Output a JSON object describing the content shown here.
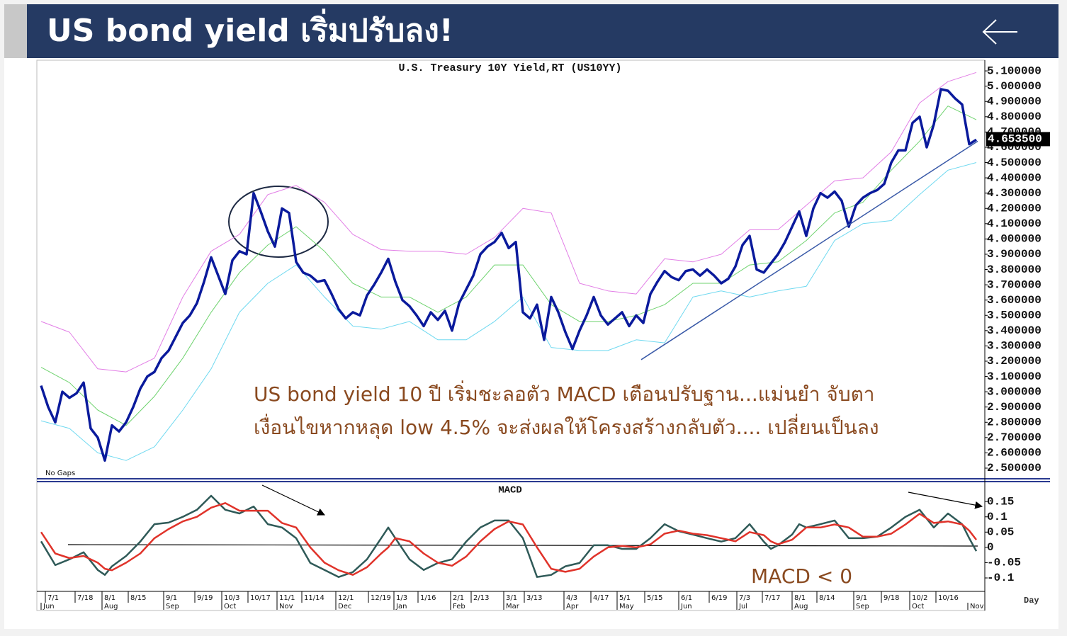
{
  "header": {
    "title": "US bond yield เริ่มปรับลง!"
  },
  "chart_data": [
    {
      "type": "line",
      "title": "U.S. Treasury 10Y Yield,RT (US10YY)",
      "annotations": [
        "No Gaps",
        "US bond yield 10 ปี เริ่มชะลอตัว MACD เตือนปรับฐาน...แม่นยำ จับตา",
        "เงื่อนไขหากหลุด low 4.5% จะส่งผลให้โครงสร้างกลับตัว.... เปลี่ยนเป็นลง"
      ],
      "xlim": [
        -0.6,
        133.2
      ],
      "ylim": [
        2.435,
        5.17
      ],
      "yticks": [
        {
          "value": 5.1,
          "label": "5.100000"
        },
        {
          "value": 5.0,
          "label": "5.000000"
        },
        {
          "value": 4.9,
          "label": "4.900000"
        },
        {
          "value": 4.8,
          "label": "4.800000"
        },
        {
          "value": 4.7,
          "label": "4.700000"
        },
        {
          "value": 4.6,
          "label": "4.600000"
        },
        {
          "value": 4.5,
          "label": "4.500000"
        },
        {
          "value": 4.4,
          "label": "4.400000"
        },
        {
          "value": 4.3,
          "label": "4.300000"
        },
        {
          "value": 4.2,
          "label": "4.200000"
        },
        {
          "value": 4.1,
          "label": "4.100000"
        },
        {
          "value": 4.0,
          "label": "4.000000"
        },
        {
          "value": 3.9,
          "label": "3.900000"
        },
        {
          "value": 3.8,
          "label": "3.800000"
        },
        {
          "value": 3.7,
          "label": "3.700000"
        },
        {
          "value": 3.6,
          "label": "3.600000"
        },
        {
          "value": 3.5,
          "label": "3.500000"
        },
        {
          "value": 3.4,
          "label": "3.400000"
        },
        {
          "value": 3.3,
          "label": "3.300000"
        },
        {
          "value": 3.2,
          "label": "3.200000"
        },
        {
          "value": 3.1,
          "label": "3.100000"
        },
        {
          "value": 3.0,
          "label": "3.000000"
        },
        {
          "value": 2.9,
          "label": "2.900000"
        },
        {
          "value": 2.8,
          "label": "2.800000"
        },
        {
          "value": 2.7,
          "label": "2.700000"
        },
        {
          "value": 2.6,
          "label": "2.600000"
        },
        {
          "value": 2.5,
          "label": "2.500000"
        }
      ],
      "series": [
        {
          "color": "#e27ee6",
          "width": 1,
          "x": [
            0,
            4,
            8,
            12,
            16,
            20,
            24,
            28,
            32,
            36,
            40,
            44,
            48,
            52,
            56,
            60,
            64,
            68,
            72,
            76,
            80,
            84,
            88,
            92,
            96,
            100,
            104,
            108,
            112,
            116,
            120,
            124,
            128,
            132
          ],
          "values": [
            3.46,
            3.39,
            3.15,
            3.13,
            3.22,
            3.62,
            3.92,
            4.03,
            4.29,
            4.35,
            4.24,
            4.03,
            3.93,
            3.92,
            3.92,
            3.9,
            4.01,
            4.2,
            4.17,
            3.71,
            3.66,
            3.64,
            3.87,
            3.85,
            3.9,
            4.06,
            4.06,
            4.22,
            4.38,
            4.4,
            4.57,
            4.89,
            5.03,
            5.09
          ]
        },
        {
          "color": "#6fd36f",
          "width": 1,
          "x": [
            0,
            4,
            8,
            12,
            16,
            20,
            24,
            28,
            32,
            36,
            40,
            44,
            48,
            52,
            56,
            60,
            64,
            68,
            72,
            76,
            80,
            84,
            88,
            92,
            96,
            100,
            104,
            108,
            112,
            116,
            120,
            124,
            128,
            132
          ],
          "values": [
            3.16,
            3.06,
            2.88,
            2.78,
            2.97,
            3.22,
            3.52,
            3.78,
            3.96,
            4.08,
            3.92,
            3.71,
            3.62,
            3.62,
            3.52,
            3.62,
            3.83,
            3.83,
            3.57,
            3.46,
            3.46,
            3.5,
            3.57,
            3.71,
            3.71,
            3.83,
            3.85,
            3.99,
            4.17,
            4.24,
            4.45,
            4.64,
            4.87,
            4.78
          ]
        },
        {
          "color": "#6fd9f0",
          "width": 1,
          "x": [
            0,
            4,
            8,
            12,
            16,
            20,
            24,
            28,
            32,
            36,
            40,
            44,
            48,
            52,
            56,
            60,
            64,
            68,
            72,
            76,
            80,
            84,
            88,
            92,
            96,
            100,
            104,
            108,
            112,
            116,
            120,
            124,
            128,
            132
          ],
          "values": [
            2.81,
            2.76,
            2.6,
            2.55,
            2.64,
            2.88,
            3.15,
            3.52,
            3.71,
            3.83,
            3.62,
            3.43,
            3.41,
            3.46,
            3.34,
            3.34,
            3.46,
            3.62,
            3.29,
            3.27,
            3.27,
            3.34,
            3.32,
            3.62,
            3.66,
            3.62,
            3.66,
            3.69,
            3.99,
            4.1,
            4.12,
            4.29,
            4.45,
            4.5
          ]
        },
        {
          "color": "#0a1a9c",
          "width": 3.5,
          "values": [
            3.04,
            2.9,
            2.8,
            3.0,
            2.96,
            2.99,
            3.06,
            2.76,
            2.7,
            2.55,
            2.78,
            2.74,
            2.8,
            2.9,
            3.02,
            3.1,
            3.13,
            3.22,
            3.27,
            3.36,
            3.45,
            3.5,
            3.58,
            3.72,
            3.88,
            3.76,
            3.64,
            3.86,
            3.92,
            3.9,
            4.3,
            4.18,
            4.05,
            3.95,
            4.2,
            4.17,
            3.85,
            3.78,
            3.76,
            3.72,
            3.73,
            3.64,
            3.54,
            3.48,
            3.52,
            3.5,
            3.63,
            3.7,
            3.78,
            3.87,
            3.72,
            3.6,
            3.56,
            3.5,
            3.43,
            3.52,
            3.47,
            3.53,
            3.4,
            3.58,
            3.67,
            3.76,
            3.9,
            3.95,
            3.98,
            4.04,
            3.94,
            3.98,
            3.52,
            3.48,
            3.57,
            3.34,
            3.62,
            3.52,
            3.39,
            3.28,
            3.4,
            3.5,
            3.62,
            3.5,
            3.44,
            3.48,
            3.52,
            3.43,
            3.5,
            3.45,
            3.64,
            3.72,
            3.79,
            3.75,
            3.73,
            3.79,
            3.8,
            3.76,
            3.8,
            3.76,
            3.71,
            3.74,
            3.82,
            3.96,
            4.02,
            3.8,
            3.78,
            3.84,
            3.9,
            3.98,
            4.08,
            4.18,
            4.02,
            4.2,
            4.3,
            4.27,
            4.31,
            4.25,
            4.08,
            4.22,
            4.27,
            4.3,
            4.32,
            4.36,
            4.5,
            4.58,
            4.58,
            4.76,
            4.8,
            4.6,
            4.75,
            4.98,
            4.97,
            4.92,
            4.88,
            4.62,
            4.65
          ]
        }
      ],
      "last_value": {
        "value": 4.6535,
        "label": "4.653500"
      },
      "trendline": {
        "color": "#3a5aa8",
        "x": [
          84.7,
          132.2
        ],
        "y": [
          3.21,
          4.64
        ]
      }
    },
    {
      "type": "line",
      "title": "MACD",
      "annotations": [
        "MACD < 0"
      ],
      "xlabel": "Day",
      "xlim": [
        -0.6,
        133.2
      ],
      "ylim": [
        -0.144,
        0.213
      ],
      "yticks": [
        0.15,
        0.1,
        0.05,
        0,
        -0.05,
        -0.1
      ],
      "xticks": [
        {
          "value": 0.6,
          "label": "7/1"
        },
        {
          "value": 4.8,
          "label": "7/18"
        },
        {
          "value": 8.6,
          "label": "8/1"
        },
        {
          "value": 12.3,
          "label": "8/15"
        },
        {
          "value": 17.3,
          "label": "9/1"
        },
        {
          "value": 21.7,
          "label": "9/19"
        },
        {
          "value": 25.5,
          "label": "10/3"
        },
        {
          "value": 29.2,
          "label": "10/17"
        },
        {
          "value": 33.3,
          "label": "11/1"
        },
        {
          "value": 36.8,
          "label": "11/14"
        },
        {
          "value": 41.6,
          "label": "12/1"
        },
        {
          "value": 46.2,
          "label": "12/19"
        },
        {
          "value": 49.8,
          "label": "1/3"
        },
        {
          "value": 53.2,
          "label": "1/16"
        },
        {
          "value": 57.8,
          "label": "2/1"
        },
        {
          "value": 60.7,
          "label": "2/13"
        },
        {
          "value": 65.3,
          "label": "3/1"
        },
        {
          "value": 68.2,
          "label": "3/13"
        },
        {
          "value": 73.8,
          "label": "4/3"
        },
        {
          "value": 77.6,
          "label": "4/17"
        },
        {
          "value": 81.3,
          "label": "5/1"
        },
        {
          "value": 85.2,
          "label": "5/15"
        },
        {
          "value": 90,
          "label": "6/1"
        },
        {
          "value": 94.3,
          "label": "6/19"
        },
        {
          "value": 98.2,
          "label": "7/3"
        },
        {
          "value": 101.8,
          "label": "7/17"
        },
        {
          "value": 106,
          "label": "8/1"
        },
        {
          "value": 109.5,
          "label": "8/14"
        },
        {
          "value": 114.7,
          "label": "9/1"
        },
        {
          "value": 118.6,
          "label": "9/18"
        },
        {
          "value": 122.6,
          "label": "10/2"
        },
        {
          "value": 126.3,
          "label": "10/16"
        }
      ],
      "month_ticks": [
        {
          "value": 0,
          "label": "Jun"
        },
        {
          "value": 8.6,
          "label": "Aug"
        },
        {
          "value": 17.3,
          "label": "Sep"
        },
        {
          "value": 25.5,
          "label": "Oct"
        },
        {
          "value": 33.3,
          "label": "Nov"
        },
        {
          "value": 41.6,
          "label": "Dec"
        },
        {
          "value": 49.8,
          "label": "Jan"
        },
        {
          "value": 57.8,
          "label": "Feb"
        },
        {
          "value": 65.3,
          "label": "Mar"
        },
        {
          "value": 73.8,
          "label": "Apr"
        },
        {
          "value": 81.3,
          "label": "May"
        },
        {
          "value": 90,
          "label": "Jun"
        },
        {
          "value": 98.2,
          "label": "Jul"
        },
        {
          "value": 106,
          "label": "Aug"
        },
        {
          "value": 114.7,
          "label": "Sep"
        },
        {
          "value": 122.6,
          "label": "Oct"
        },
        {
          "value": 130.8,
          "label": "Nov"
        }
      ],
      "series": [
        {
          "color": "#2f5a58",
          "width": 2.5,
          "x": [
            0,
            2,
            4,
            6,
            8,
            9,
            10,
            12,
            14,
            16,
            18,
            20,
            22,
            24,
            26,
            28,
            30,
            32,
            34,
            36,
            38,
            40,
            42,
            44,
            46,
            48,
            49,
            50,
            52,
            54,
            56,
            58,
            60,
            62,
            64,
            66,
            68,
            70,
            72,
            74,
            76,
            78,
            80,
            82,
            84,
            86,
            88,
            90,
            92,
            94,
            96,
            98,
            100,
            102,
            103,
            104,
            106,
            107,
            108,
            110,
            112,
            114,
            116,
            118,
            120,
            122,
            124,
            126,
            128,
            130,
            131,
            132
          ],
          "values": [
            0.02,
            -0.058,
            -0.039,
            -0.016,
            -0.074,
            -0.09,
            -0.062,
            -0.028,
            0.019,
            0.076,
            0.081,
            0.1,
            0.123,
            0.169,
            0.123,
            0.111,
            0.134,
            0.076,
            0.065,
            0.03,
            -0.051,
            -0.074,
            -0.097,
            -0.081,
            -0.039,
            0.03,
            0.065,
            0.03,
            -0.039,
            -0.074,
            -0.051,
            -0.039,
            0.019,
            0.065,
            0.088,
            0.088,
            0.03,
            -0.097,
            -0.09,
            -0.062,
            -0.051,
            0.007,
            0.007,
            -0.005,
            -0.005,
            0.03,
            0.076,
            0.053,
            0.042,
            0.03,
            0.019,
            0.03,
            0.076,
            0.019,
            -0.005,
            0.007,
            0.042,
            0.076,
            0.065,
            0.076,
            0.088,
            0.03,
            0.03,
            0.035,
            0.065,
            0.1,
            0.123,
            0.065,
            0.111,
            0.076,
            0.03,
            -0.012
          ]
        },
        {
          "color": "#e0332a",
          "width": 2.5,
          "x": [
            0,
            2,
            4,
            6,
            8,
            9,
            10,
            12,
            14,
            16,
            18,
            20,
            22,
            24,
            26,
            28,
            30,
            32,
            34,
            36,
            38,
            40,
            42,
            44,
            46,
            48,
            49,
            50,
            52,
            54,
            56,
            58,
            60,
            62,
            64,
            66,
            68,
            70,
            72,
            74,
            76,
            78,
            80,
            82,
            84,
            86,
            88,
            90,
            92,
            94,
            96,
            98,
            100,
            102,
            103,
            104,
            106,
            107,
            108,
            110,
            112,
            114,
            116,
            118,
            120,
            122,
            124,
            126,
            128,
            130,
            131,
            132
          ],
          "values": [
            0.05,
            -0.02,
            -0.035,
            -0.028,
            -0.05,
            -0.07,
            -0.075,
            -0.05,
            -0.02,
            0.03,
            0.06,
            0.085,
            0.1,
            0.13,
            0.145,
            0.12,
            0.12,
            0.12,
            0.08,
            0.065,
            0.0,
            -0.05,
            -0.075,
            -0.09,
            -0.065,
            -0.02,
            0.0,
            0.03,
            0.02,
            -0.02,
            -0.05,
            -0.06,
            -0.03,
            0.02,
            0.06,
            0.085,
            0.075,
            0.0,
            -0.07,
            -0.08,
            -0.07,
            -0.03,
            0.0,
            0.005,
            0.0,
            0.01,
            0.045,
            0.055,
            0.045,
            0.04,
            0.03,
            0.02,
            0.05,
            0.04,
            0.02,
            0.01,
            0.025,
            0.045,
            0.065,
            0.065,
            0.075,
            0.065,
            0.035,
            0.035,
            0.045,
            0.075,
            0.11,
            0.08,
            0.085,
            0.075,
            0.055,
            0.025
          ]
        }
      ]
    }
  ]
}
